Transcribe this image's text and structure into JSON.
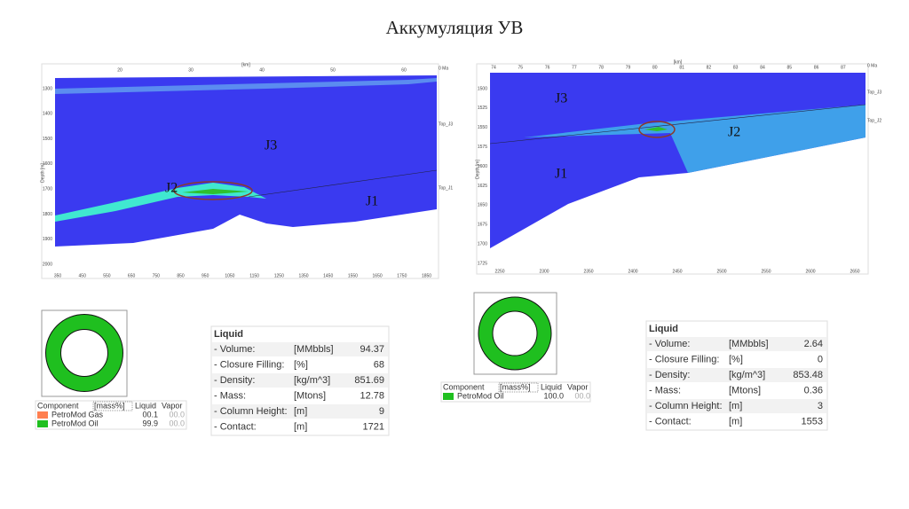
{
  "title": "Аккумуляция УВ",
  "sections": [
    {
      "top_axis_label": "[km]",
      "top_ticks": [
        "20",
        "30",
        "40",
        "50",
        "60"
      ],
      "corner_label": "0 Ma",
      "depth_label": "Depth [m]",
      "depth_ticks": [
        "1300",
        "1400",
        "1500",
        "1600",
        "1700",
        "1800",
        "1900",
        "2000"
      ],
      "bottom_ticks": [
        "350",
        "450",
        "550",
        "650",
        "750",
        "850",
        "950",
        "1050",
        "1150",
        "1250",
        "1350",
        "1450",
        "1550",
        "1650",
        "1750",
        "1850"
      ],
      "horizons": [
        "Top_J3",
        "Top_J1"
      ],
      "units": [
        "J3",
        "J2",
        "J1"
      ]
    },
    {
      "top_axis_label": "[km]",
      "top_ticks": [
        "74",
        "75",
        "76",
        "77",
        "78",
        "79",
        "80",
        "81",
        "82",
        "83",
        "84",
        "85",
        "86",
        "87"
      ],
      "corner_label": "0 Ma",
      "depth_label": "Depth [m]",
      "depth_ticks": [
        "1500",
        "1525",
        "1550",
        "1575",
        "1600",
        "1625",
        "1650",
        "1675",
        "1700",
        "1725"
      ],
      "bottom_ticks": [
        "2250",
        "2300",
        "2350",
        "2400",
        "2450",
        "2500",
        "2550",
        "2600",
        "2650"
      ],
      "horizons": [
        "Top_J3",
        "Top_J2"
      ],
      "units": [
        "J3",
        "J2",
        "J1"
      ]
    }
  ],
  "components": [
    {
      "header": [
        "Component",
        "[mass%]",
        "Liquid",
        "Vapor"
      ],
      "rows": [
        {
          "name": "PetroMod Gas",
          "color": "#ff7f50",
          "liquid": "00.1",
          "vapor": "00.0"
        },
        {
          "name": "PetroMod Oil",
          "color": "#1fbf1f",
          "liquid": "99.9",
          "vapor": "00.0"
        }
      ]
    },
    {
      "header": [
        "Component",
        "[mass%]",
        "Liquid",
        "Vapor"
      ],
      "rows": [
        {
          "name": "PetroMod Oil",
          "color": "#1fbf1f",
          "liquid": "100.0",
          "vapor": "00.0"
        }
      ]
    }
  ],
  "liquid": [
    {
      "title": "Liquid",
      "rows": [
        {
          "label": "- Volume:",
          "unit": "[MMbbls]",
          "value": "94.37"
        },
        {
          "label": "- Closure Filling:",
          "unit": "[%]",
          "value": "68"
        },
        {
          "label": "- Density:",
          "unit": "[kg/m^3]",
          "value": "851.69"
        },
        {
          "label": "- Mass:",
          "unit": "[Mtons]",
          "value": "12.78"
        },
        {
          "label": "- Column Height:",
          "unit": "[m]",
          "value": "9"
        },
        {
          "label": "- Contact:",
          "unit": "[m]",
          "value": "1721"
        }
      ]
    },
    {
      "title": "Liquid",
      "rows": [
        {
          "label": "- Volume:",
          "unit": "[MMbbls]",
          "value": "2.64"
        },
        {
          "label": "- Closure Filling:",
          "unit": "[%]",
          "value": "0"
        },
        {
          "label": "- Density:",
          "unit": "[kg/m^3]",
          "value": "853.48"
        },
        {
          "label": "- Mass:",
          "unit": "[Mtons]",
          "value": "0.36"
        },
        {
          "label": "- Column Height:",
          "unit": "[m]",
          "value": "3"
        },
        {
          "label": "- Contact:",
          "unit": "[m]",
          "value": "1553"
        }
      ]
    }
  ]
}
